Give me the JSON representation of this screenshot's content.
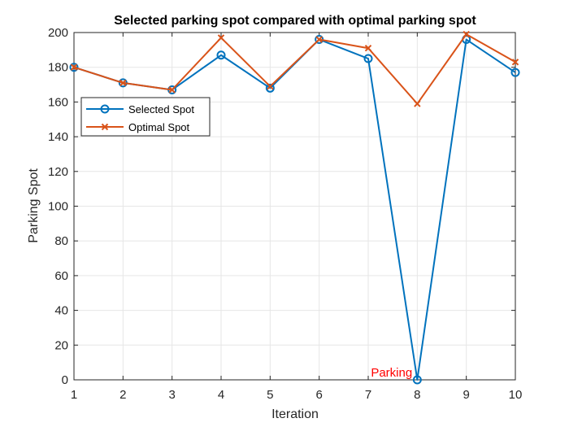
{
  "chart_data": {
    "type": "line",
    "title": "Selected parking spot compared with optimal parking spot",
    "xlabel": "Iteration",
    "ylabel": "Parking Spot",
    "xlim": [
      1,
      10
    ],
    "ylim": [
      0,
      200
    ],
    "xticks": [
      1,
      2,
      3,
      4,
      5,
      6,
      7,
      8,
      9,
      10
    ],
    "yticks": [
      0,
      20,
      40,
      60,
      80,
      100,
      120,
      140,
      160,
      180,
      200
    ],
    "grid": true,
    "legend_position": "upper-left",
    "x": [
      1,
      2,
      3,
      4,
      5,
      6,
      7,
      8,
      9,
      10
    ],
    "series": [
      {
        "name": "Selected Spot",
        "values": [
          180,
          171,
          167,
          187,
          168,
          196,
          185,
          0,
          196,
          177
        ],
        "color": "#0072BD",
        "marker": "circle"
      },
      {
        "name": "Optimal Spot",
        "values": [
          180,
          171,
          167,
          197,
          169,
          196,
          191,
          159,
          199,
          183
        ],
        "color": "#D95319",
        "marker": "x"
      }
    ],
    "annotations": [
      {
        "text": "Parking",
        "x": 8,
        "y": 0,
        "color": "#ff0000"
      }
    ]
  }
}
